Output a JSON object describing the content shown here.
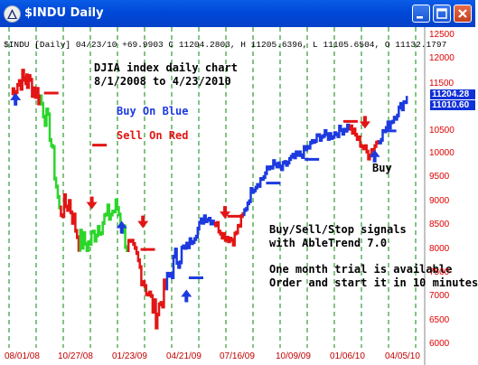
{
  "window": {
    "title": "$INDU Daily",
    "icon": "chart-app-icon",
    "buttons": [
      "minimize-icon",
      "maximize-icon",
      "close-icon"
    ]
  },
  "header_line": "$INDU [Daily] 04/23/10 +69.9903 C 11204.2803, H 11205.6396, L 11105.6504, O 11132.1797",
  "annotations": {
    "title_line1": "DJIA index daily chart",
    "title_line2": "8/1/2008 to 4/23/2010",
    "buy_blue": "Buy On Blue",
    "sell_red": "Sell On Red",
    "buy_label": "Buy",
    "signals_line1": "Buy/Sell/Stop signals",
    "signals_line2": "with AbleTrend 7.0",
    "trial_line1": "One month trial is available",
    "trial_line2": "Order and start it in 10 minutes"
  },
  "price_boxes": [
    "11204.28",
    "11010.60"
  ],
  "colors": {
    "buy": "#1d3adf",
    "sell": "#e31515",
    "neutral": "#2bd62b",
    "axis": "#e00000",
    "grid": "#0a8a0a"
  },
  "chart_data": {
    "type": "line",
    "y_axis": {
      "ticks": [
        "12500",
        "12000",
        "11500",
        "11000",
        "10500",
        "10000",
        "9500",
        "9000",
        "8500",
        "8000",
        "7500",
        "7000",
        "6500",
        "6000"
      ],
      "ylim": [
        6000,
        12500
      ]
    },
    "x_axis": {
      "ticks": [
        "08/01/08",
        "10/27/08",
        "01/23/09",
        "04/21/09",
        "07/16/09",
        "10/09/09",
        "01/06/10",
        "04/05/10"
      ]
    },
    "series": [
      {
        "name": "",
        "x": [
          "08/01/08",
          "08/15/08",
          "09/01/08",
          "09/15/08",
          "10/01/08",
          "10/15/08",
          "10/27/08",
          "11/10/08",
          "11/20/08",
          "12/05/08",
          "12/20/08",
          "01/05/09",
          "01/23/09",
          "02/10/09",
          "02/25/09",
          "03/09/09",
          "03/20/09",
          "04/01/09",
          "04/21/09",
          "05/10/09",
          "06/01/09",
          "06/15/09",
          "07/01/09",
          "07/10/09",
          "07/16/09",
          "08/01/09",
          "08/20/09",
          "09/10/09",
          "09/25/09",
          "10/09/09",
          "10/25/09",
          "11/10/09",
          "11/25/09",
          "12/10/09",
          "12/25/09",
          "01/06/10",
          "01/20/10",
          "02/05/10",
          "02/20/10",
          "03/10/10",
          "04/05/10",
          "04/23/10"
        ],
        "values": [
          11300,
          11600,
          11500,
          11200,
          10500,
          8800,
          9000,
          8200,
          8100,
          8500,
          8700,
          8900,
          8100,
          7800,
          7200,
          6600,
          7200,
          7800,
          8000,
          8300,
          8700,
          8600,
          8300,
          8200,
          8700,
          9300,
          9500,
          9800,
          9700,
          9900,
          10000,
          10200,
          10400,
          10400,
          10500,
          10600,
          10300,
          10000,
          10300,
          10600,
          10900,
          11200
        ]
      }
    ],
    "grid": true
  }
}
